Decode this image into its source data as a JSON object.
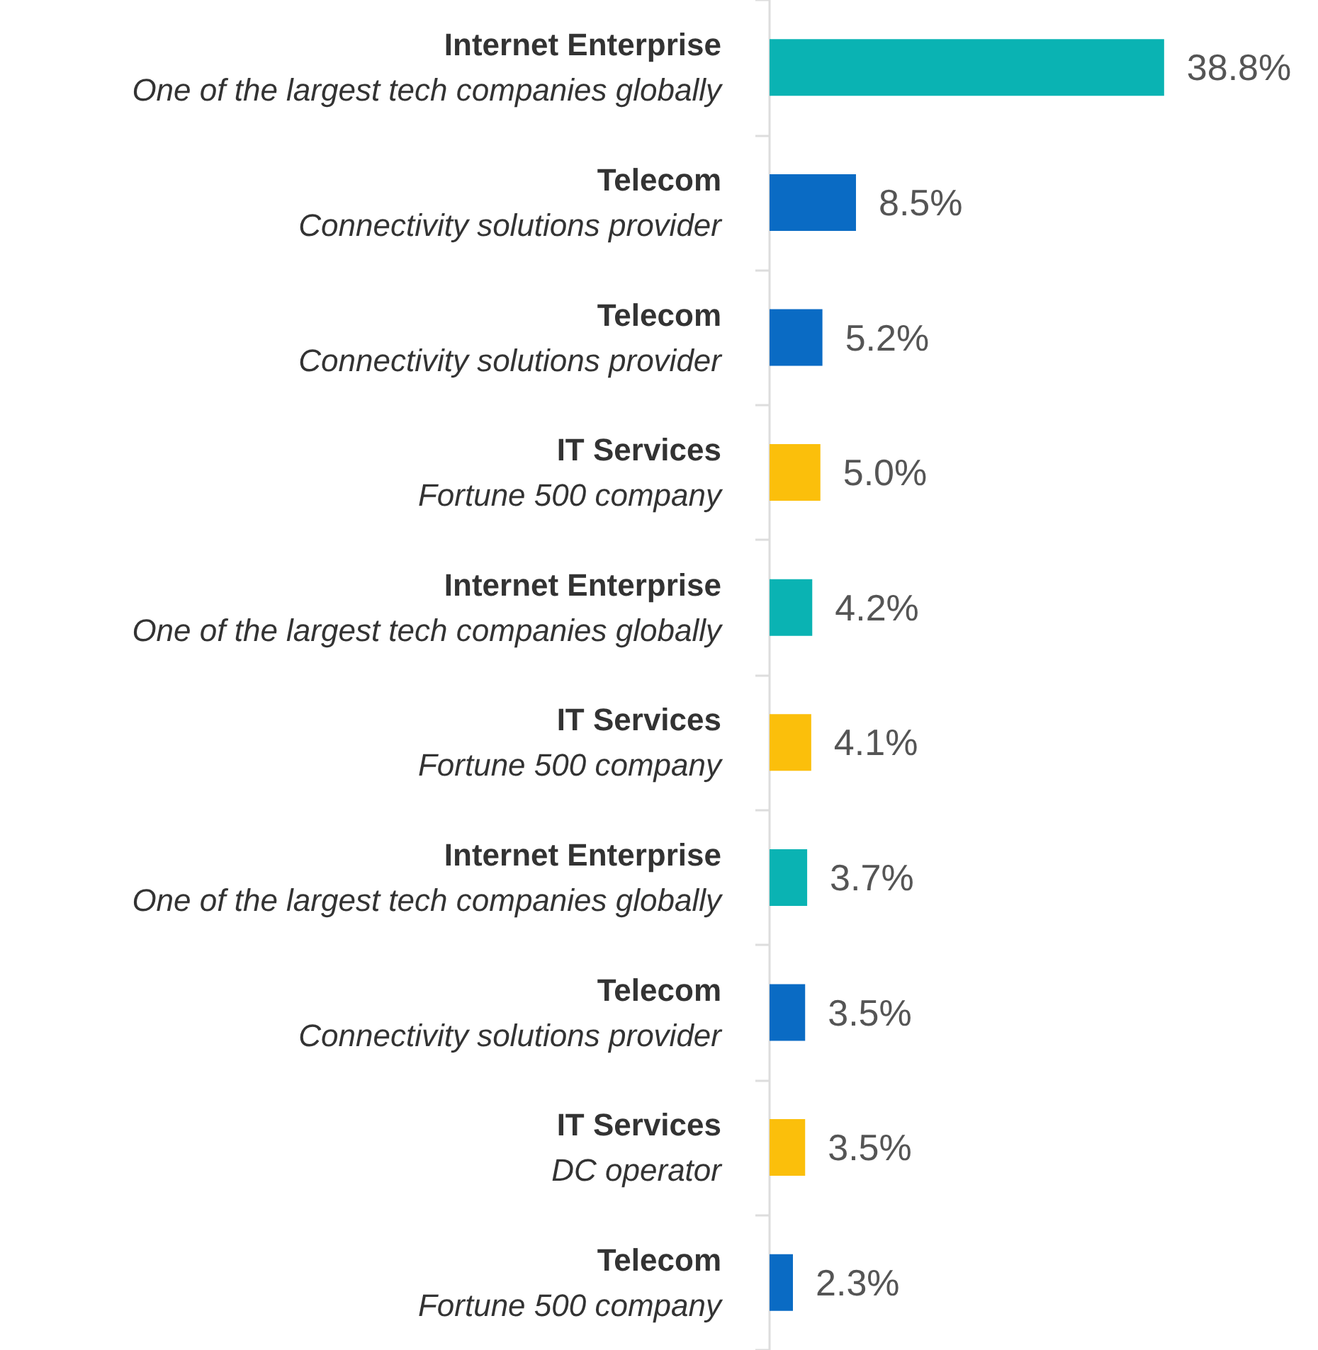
{
  "chart_data": {
    "type": "bar",
    "orientation": "horizontal",
    "grid": false,
    "value_labels": [
      "38.8%",
      "8.5%",
      "5.2%",
      "5.0%",
      "4.2%",
      "4.1%",
      "3.7%",
      "3.5%",
      "3.5%",
      "2.3%"
    ],
    "categories": [
      "Internet Enterprise\nOne of the largest tech companies globally",
      "Telecom\nConnectivity solutions provider",
      "Telecom\nConnectivity solutions provider",
      "IT Services\nFortune 500 company",
      "Internet Enterprise\nOne of the largest tech companies globally",
      "IT Services\nFortune 500 company",
      "Internet Enterprise\nOne of the largest tech companies globally",
      "Telecom\nConnectivity solutions provider",
      "IT Services\nDC operator",
      "Telecom\nFortune 500 company"
    ],
    "values": [
      38.8,
      8.5,
      5.2,
      5.0,
      4.2,
      4.1,
      3.7,
      3.5,
      3.5,
      2.3
    ],
    "colors": [
      "#0ab3b3",
      "#0a6bc4",
      "#0a6bc4",
      "#fbbf0b",
      "#0ab3b3",
      "#fbbf0b",
      "#0ab3b3",
      "#0a6bc4",
      "#fbbf0b",
      "#0a6bc4"
    ]
  }
}
